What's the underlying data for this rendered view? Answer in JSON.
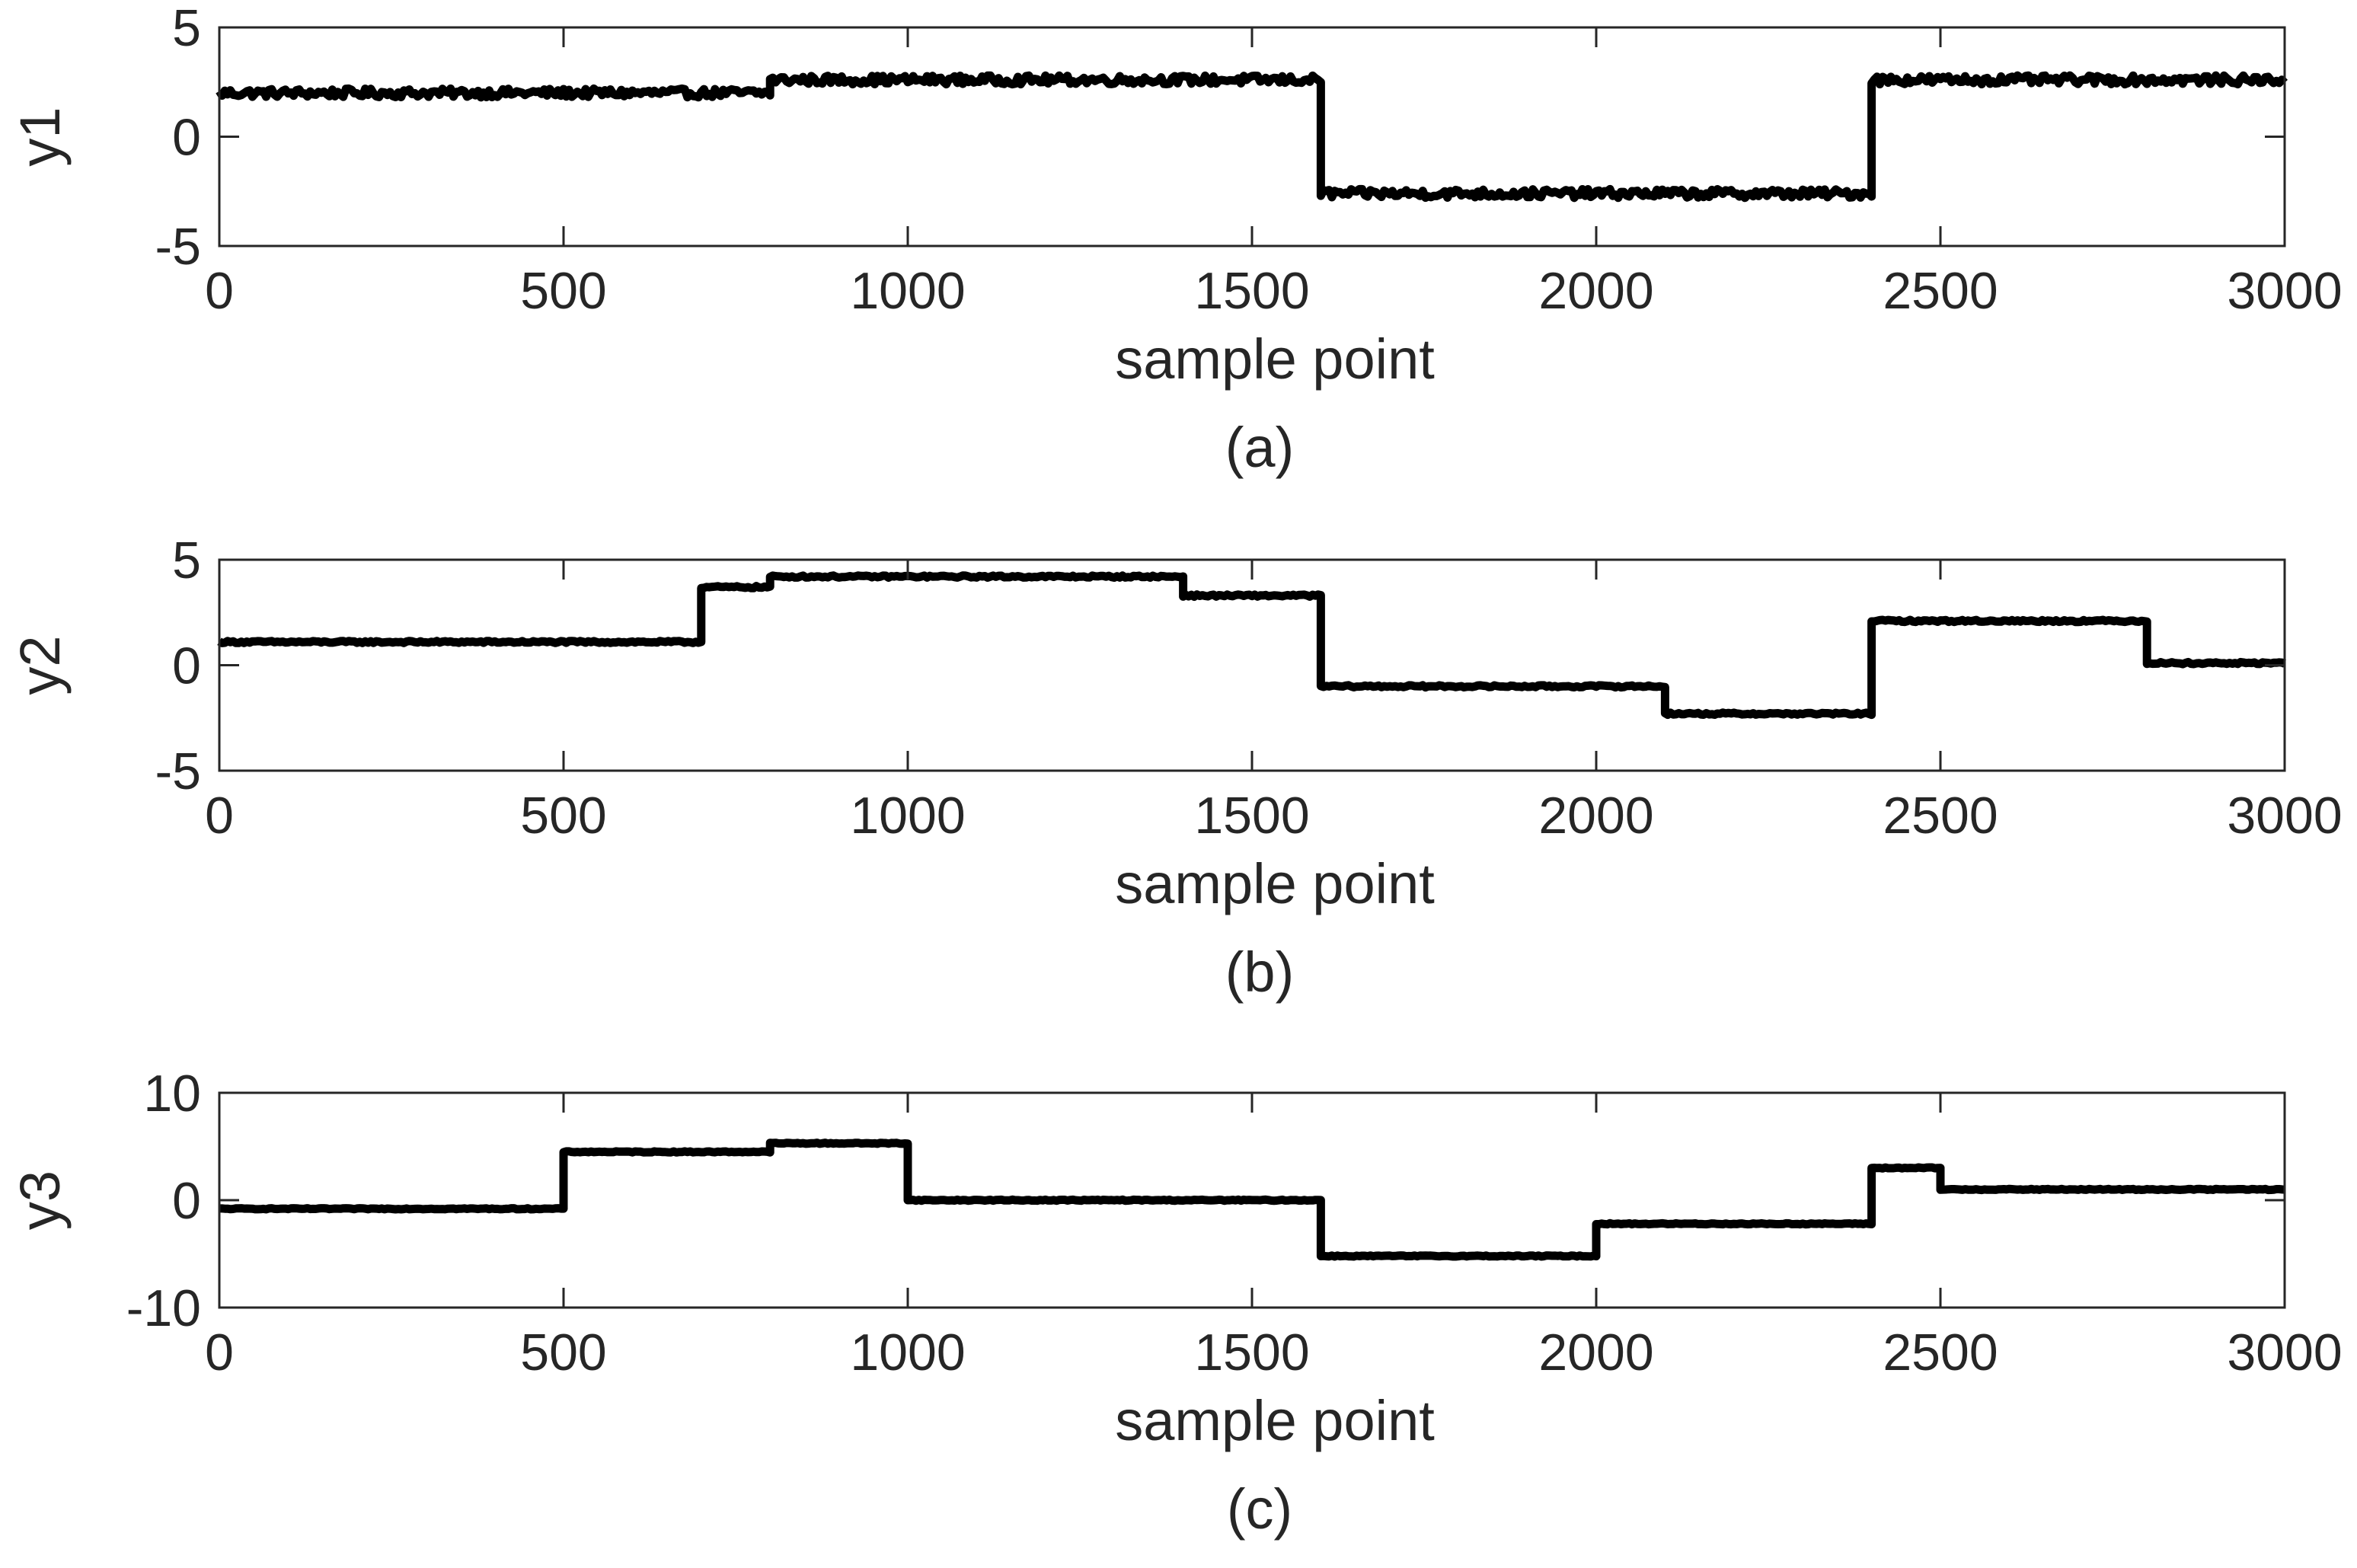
{
  "chart_data": [
    {
      "type": "line",
      "panel_label": "(a)",
      "xlabel": "sample point",
      "ylabel": "y1",
      "xlim": [
        0,
        3000
      ],
      "ylim": [
        -5,
        5
      ],
      "xticks": [
        0,
        500,
        1000,
        1500,
        2000,
        2500,
        3000
      ],
      "yticks": [
        -5,
        0,
        5
      ],
      "grid": false,
      "noise_amplitude": 0.2,
      "line_color": "#000000",
      "segments": [
        {
          "x_start": 0,
          "x_end": 800,
          "value": 2.0
        },
        {
          "x_start": 800,
          "x_end": 1600,
          "value": 2.6
        },
        {
          "x_start": 1600,
          "x_end": 2400,
          "value": -2.6
        },
        {
          "x_start": 2400,
          "x_end": 3000,
          "value": 2.6
        }
      ]
    },
    {
      "type": "line",
      "panel_label": "(b)",
      "xlabel": "sample point",
      "ylabel": "y2",
      "xlim": [
        0,
        3000
      ],
      "ylim": [
        -5,
        5
      ],
      "xticks": [
        0,
        500,
        1000,
        1500,
        2000,
        2500,
        3000
      ],
      "yticks": [
        -5,
        0,
        5
      ],
      "grid": false,
      "noise_amplitude": 0.05,
      "line_color": "#000000",
      "segments": [
        {
          "x_start": 0,
          "x_end": 700,
          "value": 1.1
        },
        {
          "x_start": 700,
          "x_end": 800,
          "value": 3.7
        },
        {
          "x_start": 800,
          "x_end": 1400,
          "value": 4.2
        },
        {
          "x_start": 1400,
          "x_end": 1600,
          "value": 3.3
        },
        {
          "x_start": 1600,
          "x_end": 2100,
          "value": -1.0
        },
        {
          "x_start": 2100,
          "x_end": 2400,
          "value": -2.3
        },
        {
          "x_start": 2400,
          "x_end": 2800,
          "value": 2.1
        },
        {
          "x_start": 2800,
          "x_end": 3000,
          "value": 0.1
        }
      ]
    },
    {
      "type": "line",
      "panel_label": "(c)",
      "xlabel": "sample point",
      "ylabel": "y3",
      "xlim": [
        0,
        3000
      ],
      "ylim": [
        -10,
        10
      ],
      "xticks": [
        0,
        500,
        1000,
        1500,
        2000,
        2500,
        3000
      ],
      "yticks": [
        -10,
        0,
        10
      ],
      "grid": false,
      "noise_amplitude": 0.05,
      "line_color": "#000000",
      "segments": [
        {
          "x_start": 0,
          "x_end": 500,
          "value": -0.8
        },
        {
          "x_start": 500,
          "x_end": 800,
          "value": 4.5
        },
        {
          "x_start": 800,
          "x_end": 1000,
          "value": 5.3
        },
        {
          "x_start": 1000,
          "x_end": 1600,
          "value": 0.0
        },
        {
          "x_start": 1600,
          "x_end": 2000,
          "value": -5.2
        },
        {
          "x_start": 2000,
          "x_end": 2400,
          "value": -2.2
        },
        {
          "x_start": 2400,
          "x_end": 2500,
          "value": 3.0
        },
        {
          "x_start": 2500,
          "x_end": 3000,
          "value": 1.0
        }
      ]
    }
  ]
}
